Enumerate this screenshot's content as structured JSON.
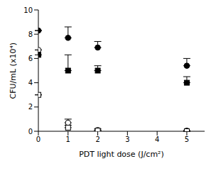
{
  "chart_data": {
    "type": "scatter",
    "x_label": "PDT light dose (J/cm²)",
    "y_label": "CFU/mL (x10⁴)",
    "xlim": [
      0,
      5.6
    ],
    "xticks": [
      0,
      1,
      2,
      3,
      4,
      5
    ],
    "ylim": [
      0,
      10
    ],
    "yticks": [
      0,
      2,
      4,
      6,
      8,
      10
    ],
    "grid": false,
    "x": [
      0,
      1,
      2,
      5
    ],
    "series": [
      {
        "color": "#000000",
        "marker": "circle",
        "values": [
          8.3,
          7.7,
          6.9,
          5.4
        ],
        "errors": [
          0,
          0.9,
          0.5,
          0.6
        ]
      },
      {
        "color": "#000000",
        "marker": "circle-open",
        "values": [
          6.7,
          0.7,
          0.1,
          0.05
        ],
        "errors": [
          0,
          0.3,
          0.1,
          0
        ]
      },
      {
        "color": "#000000",
        "marker": "square",
        "values": [
          6.3,
          5.0,
          5.0,
          4.0
        ],
        "errors": [
          0.4,
          1.3,
          0.4,
          0.5
        ]
      },
      {
        "color": "#000000",
        "marker": "square-open",
        "values": [
          3.0,
          0.3,
          0.05,
          0.0
        ],
        "errors": [
          0,
          0.2,
          0,
          0
        ]
      }
    ]
  }
}
